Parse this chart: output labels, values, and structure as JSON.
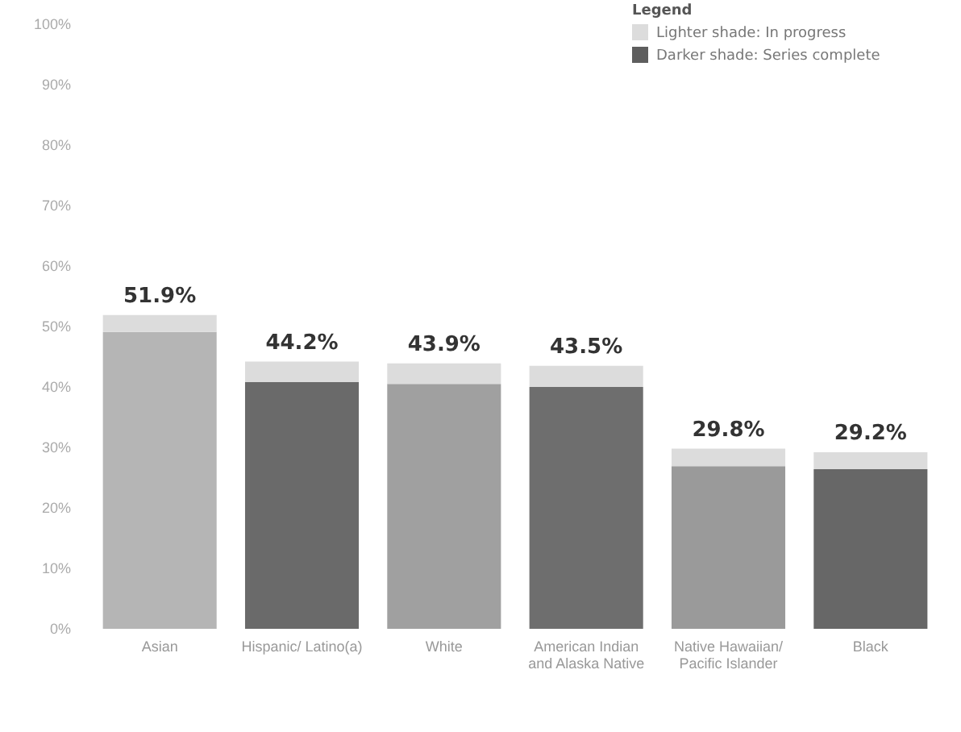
{
  "chart_data": {
    "type": "bar",
    "stacked": true,
    "legend": "top right",
    "legend_title": "Legend",
    "categories": [
      "Asian",
      "Hispanic/ Latino(a)",
      "White",
      "American Indian and Alaska Native",
      "Native Hawaiian/ Pacific Islander",
      "Black"
    ],
    "series": [
      {
        "name": "Darker shade: Series complete",
        "color": "#5e5e5e",
        "colors": [
          "#b5b5b5",
          "#6a6a6a",
          "#a0a0a0",
          "#6e6e6e",
          "#9a9a9a",
          "#676767"
        ],
        "values": [
          49.1,
          40.8,
          40.5,
          40.0,
          26.9,
          26.4
        ]
      },
      {
        "name": "Lighter shade: In progress",
        "color": "#dcdcdc",
        "values": [
          2.8,
          3.4,
          3.4,
          3.5,
          2.9,
          2.8
        ]
      }
    ],
    "totals": [
      "51.9%",
      "44.2%",
      "43.9%",
      "43.5%",
      "29.8%",
      "29.2%"
    ],
    "ylim": [
      0,
      100
    ],
    "yticks": [
      {
        "value": 0,
        "label": "0%"
      },
      {
        "value": 10,
        "label": "10%"
      },
      {
        "value": 20,
        "label": "20%"
      },
      {
        "value": 30,
        "label": "30%"
      },
      {
        "value": 40,
        "label": "40%"
      },
      {
        "value": 50,
        "label": "50%"
      },
      {
        "value": 60,
        "label": "60%"
      },
      {
        "value": 70,
        "label": "70%"
      },
      {
        "value": 80,
        "label": "80%"
      },
      {
        "value": 90,
        "label": "90%"
      },
      {
        "value": 100,
        "label": "100%"
      }
    ]
  }
}
